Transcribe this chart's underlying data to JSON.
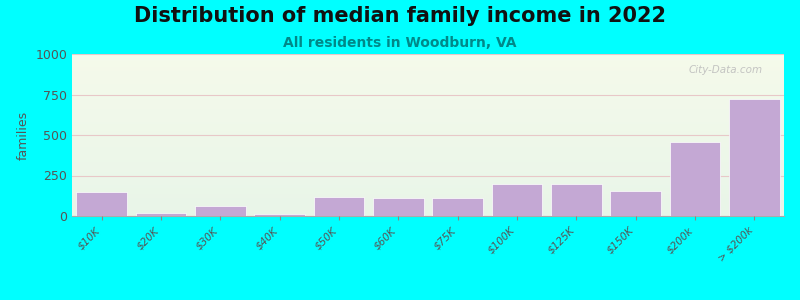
{
  "title": "Distribution of median family income in 2022",
  "subtitle": "All residents in Woodburn, VA",
  "ylabel": "families",
  "categories": [
    "$10K",
    "$20K",
    "$30K",
    "$40K",
    "$50K",
    "$60K",
    "$75K",
    "$100K",
    "$125K",
    "$150K",
    "$200k",
    "> $200k"
  ],
  "values": [
    150,
    20,
    60,
    10,
    120,
    110,
    110,
    200,
    195,
    155,
    455,
    725
  ],
  "bar_color": "#c4a8d4",
  "ylim": [
    0,
    1000
  ],
  "yticks": [
    0,
    250,
    500,
    750,
    1000
  ],
  "bg_color": "#00ffff",
  "grad_top": "#f5f8ee",
  "grad_bottom": "#e8f5ee",
  "watermark": "City-Data.com",
  "title_fontsize": 15,
  "subtitle_fontsize": 10,
  "subtitle_color": "#008888",
  "grid_color": "#e8c8c8",
  "tick_label_color": "#555555",
  "ylabel_color": "#555555"
}
